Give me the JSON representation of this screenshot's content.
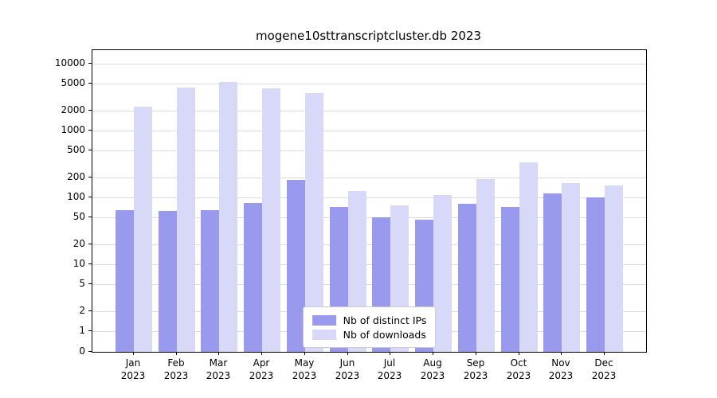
{
  "title": "mogene10sttranscriptcluster.db 2023",
  "chart_data": {
    "type": "bar",
    "title": "mogene10sttranscriptcluster.db 2023",
    "categories": [
      "Jan 2023",
      "Feb 2023",
      "Mar 2023",
      "Apr 2023",
      "May 2023",
      "Jun 2023",
      "Jul 2023",
      "Aug 2023",
      "Sep 2023",
      "Oct 2023",
      "Nov 2023",
      "Dec 2023"
    ],
    "series": [
      {
        "name": "Nb of distinct IPs",
        "color": "#9999ee",
        "values": [
          65,
          62,
          65,
          82,
          185,
          72,
          50,
          47,
          80,
          72,
          115,
          100
        ]
      },
      {
        "name": "Nb of downloads",
        "color": "#d8d8f8",
        "values": [
          2300,
          4400,
          5300,
          4300,
          3600,
          125,
          75,
          110,
          190,
          330,
          165,
          150
        ]
      }
    ],
    "xlabel": "",
    "ylabel": "",
    "yscale": "symlog",
    "yticks": [
      0,
      1,
      2,
      5,
      10,
      20,
      50,
      100,
      200,
      500,
      1000,
      2000,
      5000,
      10000
    ],
    "ylim": [
      0,
      10000
    ],
    "grid": true,
    "legend_position": "inside-bottom-center"
  },
  "legend": {
    "items": [
      {
        "label": "Nb of distinct IPs"
      },
      {
        "label": "Nb of downloads"
      }
    ]
  }
}
